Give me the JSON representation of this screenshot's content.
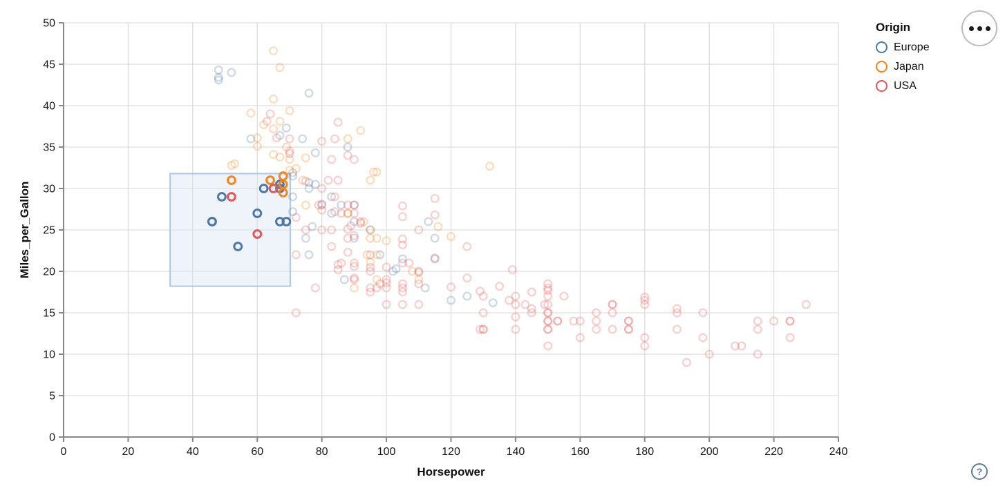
{
  "chart_data": {
    "type": "scatter",
    "title": "",
    "xlabel": "Horsepower",
    "ylabel": "Miles_per_Gallon",
    "xlim": [
      0,
      240
    ],
    "ylim": [
      0,
      50
    ],
    "xticks": [
      0,
      20,
      40,
      60,
      80,
      100,
      120,
      140,
      160,
      180,
      200,
      220,
      240
    ],
    "yticks": [
      0,
      5,
      10,
      15,
      20,
      25,
      30,
      35,
      40,
      45,
      50
    ],
    "grid": true,
    "legend_position": "top-right",
    "legend": {
      "title": "Origin",
      "entries": [
        {
          "label": "Europe",
          "color": "#4c78a8"
        },
        {
          "label": "Japan",
          "color": "#f58518"
        },
        {
          "label": "USA",
          "color": "#e45756"
        }
      ]
    },
    "brush_selection": {
      "hp": [
        33,
        70.2
      ],
      "mpg": [
        18.2,
        31.8
      ],
      "fill": "#dbe7f6",
      "stroke": "#aac6ea"
    },
    "unselected_opacity": 0.27,
    "series": [
      {
        "name": "Europe",
        "color": "#4c78a8",
        "selected_points": [
          [
            46,
            26
          ],
          [
            46,
            26
          ],
          [
            49,
            29
          ],
          [
            54,
            23
          ],
          [
            60,
            27
          ],
          [
            62,
            30
          ],
          [
            67,
            30.5
          ],
          [
            67,
            30
          ],
          [
            67,
            26
          ],
          [
            69,
            26
          ]
        ],
        "points": [
          [
            48,
            43.4
          ],
          [
            48,
            43.1
          ],
          [
            48,
            44.3
          ],
          [
            52,
            44
          ],
          [
            58,
            36
          ],
          [
            67,
            36.4
          ],
          [
            69,
            37.3
          ],
          [
            71,
            31.9
          ],
          [
            71,
            31.5
          ],
          [
            71,
            29
          ],
          [
            71,
            27.2
          ],
          [
            74,
            36
          ],
          [
            75,
            24
          ],
          [
            76,
            41.5
          ],
          [
            76,
            30.7
          ],
          [
            76,
            30
          ],
          [
            76,
            22
          ],
          [
            77,
            25.4
          ],
          [
            78,
            34.3
          ],
          [
            78,
            30.5
          ],
          [
            80,
            28.1
          ],
          [
            83,
            29
          ],
          [
            83,
            27
          ],
          [
            86,
            28
          ],
          [
            87,
            19
          ],
          [
            88,
            35
          ],
          [
            90,
            28
          ],
          [
            90,
            26
          ],
          [
            90,
            24
          ],
          [
            95,
            25
          ],
          [
            98,
            22
          ],
          [
            102,
            20
          ],
          [
            103,
            20.3
          ],
          [
            105,
            21.5
          ],
          [
            112,
            18
          ],
          [
            113,
            26
          ],
          [
            115,
            24
          ],
          [
            115,
            21.6
          ],
          [
            120,
            16.5
          ],
          [
            125,
            17
          ],
          [
            133,
            16.2
          ]
        ]
      },
      {
        "name": "Japan",
        "color": "#f58518",
        "selected_points": [
          [
            52,
            31
          ],
          [
            64,
            31
          ],
          [
            68,
            31.5
          ],
          [
            68,
            30.5
          ],
          [
            68,
            29.5
          ]
        ],
        "points": [
          [
            52,
            32.8
          ],
          [
            53,
            33
          ],
          [
            58,
            39.1
          ],
          [
            60,
            36.1
          ],
          [
            60,
            35.1
          ],
          [
            62,
            37.7
          ],
          [
            65,
            46.6
          ],
          [
            65,
            40.8
          ],
          [
            65,
            37.2
          ],
          [
            65,
            34.1
          ],
          [
            67,
            44.6
          ],
          [
            67,
            38.1
          ],
          [
            67,
            33.8
          ],
          [
            69,
            35
          ],
          [
            70,
            39.4
          ],
          [
            70,
            33.5
          ],
          [
            70,
            32.2
          ],
          [
            72,
            32.4
          ],
          [
            74,
            31
          ],
          [
            75,
            33.7
          ],
          [
            75,
            28
          ],
          [
            88,
            36
          ],
          [
            88,
            27
          ],
          [
            88,
            27
          ],
          [
            90,
            18
          ],
          [
            92,
            37
          ],
          [
            93,
            26
          ],
          [
            94,
            22
          ],
          [
            95,
            31
          ],
          [
            95,
            25
          ],
          [
            95,
            24
          ],
          [
            95,
            21.1
          ],
          [
            96,
            32
          ],
          [
            97,
            32
          ],
          [
            97,
            24
          ],
          [
            97,
            22
          ],
          [
            97,
            19
          ],
          [
            100,
            23.7
          ],
          [
            108,
            20
          ],
          [
            110,
            19
          ],
          [
            116,
            25.4
          ],
          [
            120,
            24.2
          ],
          [
            132,
            32.7
          ]
        ]
      },
      {
        "name": "USA",
        "color": "#e45756",
        "selected_points": [
          [
            52,
            29
          ],
          [
            60,
            24.5
          ],
          [
            65,
            30
          ]
        ],
        "points": [
          [
            63,
            38.1
          ],
          [
            64,
            39
          ],
          [
            66,
            36.1
          ],
          [
            70,
            36
          ],
          [
            70,
            34.2
          ],
          [
            70,
            34.5
          ],
          [
            72,
            26.5
          ],
          [
            72,
            22
          ],
          [
            72,
            15
          ],
          [
            75,
            30.9
          ],
          [
            75,
            25
          ],
          [
            78,
            18
          ],
          [
            79,
            28
          ],
          [
            80,
            35.7
          ],
          [
            80,
            30
          ],
          [
            80,
            28
          ],
          [
            80,
            27.4
          ],
          [
            80,
            25
          ],
          [
            82,
            31
          ],
          [
            83,
            33.5
          ],
          [
            83,
            25
          ],
          [
            83,
            23
          ],
          [
            84,
            36
          ],
          [
            84,
            29
          ],
          [
            84,
            27.2
          ],
          [
            85,
            38
          ],
          [
            85,
            31
          ],
          [
            85,
            20.8
          ],
          [
            85,
            20.2
          ],
          [
            86,
            27
          ],
          [
            86,
            21
          ],
          [
            88,
            34
          ],
          [
            88,
            28
          ],
          [
            88,
            25.1
          ],
          [
            88,
            24
          ],
          [
            88,
            22.3
          ],
          [
            89,
            25.5
          ],
          [
            90,
            33.5
          ],
          [
            90,
            28
          ],
          [
            90,
            27
          ],
          [
            90,
            24.3
          ],
          [
            90,
            21
          ],
          [
            90,
            20.6
          ],
          [
            90,
            19.2
          ],
          [
            90,
            19
          ],
          [
            92,
            26
          ],
          [
            92,
            25.8
          ],
          [
            95,
            22
          ],
          [
            95,
            20.5
          ],
          [
            95,
            20
          ],
          [
            95,
            18
          ],
          [
            95,
            17.5
          ],
          [
            97,
            18
          ],
          [
            98,
            18.5
          ],
          [
            100,
            20.5
          ],
          [
            100,
            19
          ],
          [
            100,
            18.6
          ],
          [
            100,
            18
          ],
          [
            100,
            16
          ],
          [
            105,
            27.9
          ],
          [
            105,
            26.6
          ],
          [
            105,
            23.9
          ],
          [
            105,
            23.2
          ],
          [
            105,
            21
          ],
          [
            105,
            18.5
          ],
          [
            105,
            18
          ],
          [
            105,
            17.5
          ],
          [
            105,
            16
          ],
          [
            107,
            21
          ],
          [
            110,
            25
          ],
          [
            110,
            20
          ],
          [
            110,
            19.9
          ],
          [
            110,
            18.5
          ],
          [
            110,
            16
          ],
          [
            115,
            28.8
          ],
          [
            115,
            26.8
          ],
          [
            115,
            21.5
          ],
          [
            120,
            18.1
          ],
          [
            125,
            23
          ],
          [
            125,
            19.2
          ],
          [
            129,
            17.6
          ],
          [
            129,
            13
          ],
          [
            130,
            17
          ],
          [
            130,
            15
          ],
          [
            130,
            13
          ],
          [
            130,
            13
          ],
          [
            135,
            18.2
          ],
          [
            138,
            16.5
          ],
          [
            139,
            20.2
          ],
          [
            140,
            17
          ],
          [
            140,
            16
          ],
          [
            140,
            14.5
          ],
          [
            140,
            13
          ],
          [
            143,
            16
          ],
          [
            145,
            17.5
          ],
          [
            145,
            15.5
          ],
          [
            145,
            15
          ],
          [
            149,
            16
          ],
          [
            150,
            18.5
          ],
          [
            150,
            18
          ],
          [
            150,
            17.7
          ],
          [
            150,
            17
          ],
          [
            150,
            16
          ],
          [
            150,
            15
          ],
          [
            150,
            15
          ],
          [
            150,
            14
          ],
          [
            150,
            14
          ],
          [
            150,
            13
          ],
          [
            150,
            13
          ],
          [
            150,
            11
          ],
          [
            153,
            14
          ],
          [
            153,
            14
          ],
          [
            155,
            17
          ],
          [
            158,
            14
          ],
          [
            160,
            14
          ],
          [
            160,
            12
          ],
          [
            165,
            15
          ],
          [
            165,
            14
          ],
          [
            165,
            13
          ],
          [
            170,
            16
          ],
          [
            170,
            16
          ],
          [
            170,
            15
          ],
          [
            170,
            13
          ],
          [
            175,
            14
          ],
          [
            175,
            14
          ],
          [
            175,
            13
          ],
          [
            175,
            13
          ],
          [
            180,
            16.9
          ],
          [
            180,
            16.5
          ],
          [
            180,
            16
          ],
          [
            180,
            12
          ],
          [
            180,
            11
          ],
          [
            190,
            15.5
          ],
          [
            190,
            15
          ],
          [
            190,
            13
          ],
          [
            193,
            9
          ],
          [
            198,
            15
          ],
          [
            198,
            12
          ],
          [
            200,
            10
          ],
          [
            208,
            11
          ],
          [
            210,
            11
          ],
          [
            215,
            14
          ],
          [
            215,
            13
          ],
          [
            215,
            10
          ],
          [
            220,
            14
          ],
          [
            225,
            14
          ],
          [
            225,
            14
          ],
          [
            225,
            12
          ],
          [
            230,
            16
          ]
        ]
      }
    ]
  },
  "ui": {
    "menu_button": {
      "icon": "ellipsis-dots"
    },
    "help_button": {
      "icon": "question-mark",
      "label": "?"
    }
  }
}
